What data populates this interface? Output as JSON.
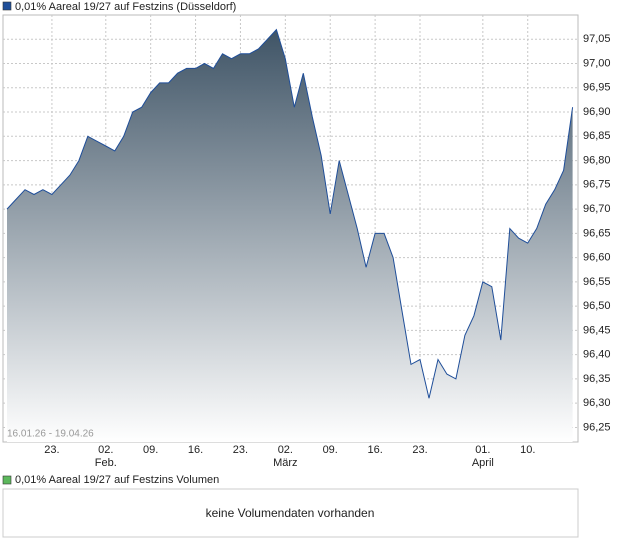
{
  "chart_data": {
    "type": "area",
    "title": "0,01% Aareal 19/27 auf Festzins (Düsseldorf)",
    "date_range": "16.01.26 - 19.04.26",
    "color": "#1f4e99",
    "legend_color": "#1f4e99",
    "fill_top": "#3f5466",
    "values": [
      96.7,
      96.72,
      96.74,
      96.73,
      96.74,
      96.73,
      96.75,
      96.77,
      96.8,
      96.85,
      96.84,
      96.83,
      96.82,
      96.85,
      96.9,
      96.91,
      96.94,
      96.96,
      96.96,
      96.98,
      96.99,
      96.99,
      97.0,
      96.99,
      97.02,
      97.01,
      97.02,
      97.02,
      97.03,
      97.05,
      97.07,
      97.01,
      96.91,
      96.98,
      96.89,
      96.81,
      96.69,
      96.8,
      96.73,
      96.66,
      96.58,
      96.65,
      96.65,
      96.6,
      96.49,
      96.38,
      96.39,
      96.31,
      96.39,
      96.36,
      96.35,
      96.44,
      96.48,
      96.55,
      96.54,
      96.43,
      96.66,
      96.64,
      96.63,
      96.66,
      96.71,
      96.74,
      96.78,
      96.91
    ],
    "xlim": [
      -0.45,
      63.6
    ],
    "xticks": [
      {
        "value": 5,
        "label": "23."
      },
      {
        "value": 11,
        "label": "02."
      },
      {
        "value": 16,
        "label": "09."
      },
      {
        "value": 21,
        "label": "16."
      },
      {
        "value": 26,
        "label": "23."
      },
      {
        "value": 31,
        "label": "02."
      },
      {
        "value": 36,
        "label": "09."
      },
      {
        "value": 41,
        "label": "16."
      },
      {
        "value": 46,
        "label": "23."
      },
      {
        "value": 53,
        "label": "01."
      },
      {
        "value": 58,
        "label": "10."
      }
    ],
    "month_labels": [
      {
        "value": 11,
        "label": "Feb."
      },
      {
        "value": 31,
        "label": "März"
      },
      {
        "value": 53,
        "label": "April"
      }
    ],
    "ylim": [
      96.22,
      97.1
    ],
    "yticks": [
      {
        "value": 96.25,
        "label": "96,25"
      },
      {
        "value": 96.3,
        "label": "96,30"
      },
      {
        "value": 96.35,
        "label": "96,35"
      },
      {
        "value": 96.4,
        "label": "96,40"
      },
      {
        "value": 96.45,
        "label": "96,45"
      },
      {
        "value": 96.5,
        "label": "96,50"
      },
      {
        "value": 96.55,
        "label": "96,55"
      },
      {
        "value": 96.6,
        "label": "96,60"
      },
      {
        "value": 96.65,
        "label": "96,65"
      },
      {
        "value": 96.7,
        "label": "96,70"
      },
      {
        "value": 96.75,
        "label": "96,75"
      },
      {
        "value": 96.8,
        "label": "96,80"
      },
      {
        "value": 96.85,
        "label": "96,85"
      },
      {
        "value": 96.9,
        "label": "96,90"
      },
      {
        "value": 96.95,
        "label": "96,95"
      },
      {
        "value": 97.0,
        "label": "97,00"
      },
      {
        "value": 97.05,
        "label": "97,05"
      }
    ],
    "grid": true
  },
  "volume": {
    "title": "0,01% Aareal 19/27 auf Festzins Volumen",
    "legend_color": "#5cb85c",
    "message": "keine Volumendaten vorhanden"
  }
}
